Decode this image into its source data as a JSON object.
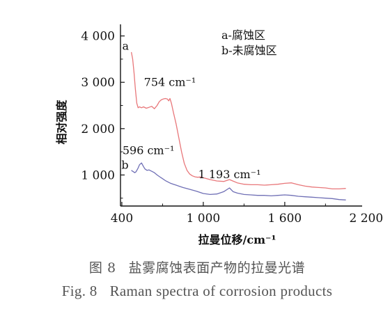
{
  "figure": {
    "caption_cn_prefix": "图 8",
    "caption_cn_text": "盐雾腐蚀表面产物的拉曼光谱",
    "caption_en_prefix": "Fig. 8",
    "caption_en_text": "Raman spectra of corrosion products"
  },
  "chart_data": {
    "type": "line",
    "title": "",
    "xlabel": "拉曼位移/cm⁻¹",
    "ylabel": "相对强度",
    "xlim": [
      390,
      2170
    ],
    "ylim": [
      330,
      4250
    ],
    "x_ticks": [
      400,
      1000,
      1600,
      2200
    ],
    "x_tick_labels": [
      "400",
      "1 000",
      "1 600",
      "2 200"
    ],
    "y_ticks": [
      1000,
      2000,
      3000,
      4000
    ],
    "y_tick_labels": [
      "1 000",
      "2 000",
      "3 000",
      "4 000"
    ],
    "grid": false,
    "legend": {
      "placement": "top-right",
      "entries": [
        "a-腐蚀区",
        "b-未腐蚀区"
      ]
    },
    "series": [
      {
        "name": "a",
        "color": "#e8777a",
        "x": [
          470,
          480,
          490,
          500,
          510,
          520,
          530,
          545,
          560,
          580,
          600,
          620,
          640,
          660,
          675,
          690,
          705,
          720,
          735,
          745,
          754,
          765,
          780,
          800,
          820,
          840,
          860,
          880,
          900,
          920,
          940,
          960,
          980,
          1000,
          1050,
          1100,
          1150,
          1193,
          1250,
          1300,
          1350,
          1400,
          1450,
          1500,
          1550,
          1600,
          1650,
          1700,
          1750,
          1800,
          1850,
          1900,
          1950,
          2000,
          2050
        ],
        "y": [
          3650,
          3500,
          3200,
          2850,
          2550,
          2450,
          2470,
          2450,
          2470,
          2440,
          2460,
          2480,
          2430,
          2500,
          2580,
          2620,
          2640,
          2650,
          2640,
          2600,
          2650,
          2550,
          2350,
          2100,
          1800,
          1500,
          1250,
          1100,
          1020,
          980,
          960,
          950,
          960,
          940,
          900,
          870,
          860,
          900,
          830,
          800,
          790,
          790,
          780,
          790,
          800,
          820,
          830,
          790,
          760,
          740,
          730,
          720,
          700,
          700,
          710
        ]
      },
      {
        "name": "b",
        "color": "#6f6fb5",
        "x": [
          470,
          480,
          495,
          505,
          520,
          530,
          545,
          560,
          570,
          585,
          600,
          620,
          640,
          660,
          680,
          700,
          720,
          740,
          760,
          780,
          800,
          850,
          900,
          950,
          1000,
          1050,
          1100,
          1150,
          1193,
          1220,
          1250,
          1300,
          1350,
          1400,
          1450,
          1500,
          1550,
          1600,
          1650,
          1700,
          1750,
          1800,
          1850,
          1900,
          1950,
          2000,
          2050
        ],
        "y": [
          1100,
          1080,
          1050,
          1070,
          1150,
          1220,
          1260,
          1180,
          1130,
          1100,
          1110,
          1080,
          1050,
          1000,
          960,
          920,
          880,
          850,
          820,
          800,
          780,
          730,
          690,
          650,
          600,
          580,
          590,
          640,
          720,
          640,
          610,
          580,
          570,
          560,
          560,
          550,
          560,
          570,
          560,
          540,
          530,
          520,
          510,
          500,
          490,
          470,
          460
        ]
      }
    ],
    "annotations": [
      {
        "text": "a",
        "x": 472,
        "y": 3700
      },
      {
        "text": "754 cm⁻¹",
        "x": 754,
        "y": 2920
      },
      {
        "text": "b",
        "x": 470,
        "y": 1130
      },
      {
        "text": "596 cm⁻¹",
        "x": 596,
        "y": 1450
      },
      {
        "text": "1 193 cm⁻¹",
        "x": 1193,
        "y": 930
      }
    ]
  }
}
